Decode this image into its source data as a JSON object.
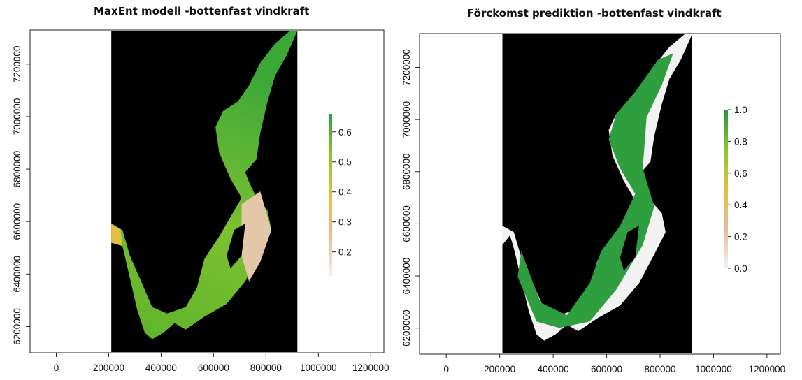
{
  "chart_data": [
    {
      "type": "heatmap",
      "title": "MaxEnt modell -bottenfast vindkraft",
      "xlabel": "",
      "ylabel": "",
      "xlim": [
        -100000,
        1250000
      ],
      "ylim": [
        6100000,
        7330000
      ],
      "x_ticks": [
        0,
        200000,
        400000,
        600000,
        800000,
        1000000,
        1200000
      ],
      "y_ticks": [
        6200000,
        6400000,
        6600000,
        6800000,
        7000000,
        7200000
      ],
      "raster_extent_x": [
        210000,
        920000
      ],
      "legend": {
        "range": [
          0.12,
          0.66
        ],
        "ticks": [
          0.2,
          0.3,
          0.4,
          0.5,
          0.6
        ],
        "tick_labels": [
          "0.2",
          "0.3",
          "0.4",
          "0.5",
          "0.6"
        ],
        "colors": [
          "#f2f2f2",
          "#e8b89e",
          "#e0c040",
          "#8ac630",
          "#2e9e3e"
        ]
      },
      "background_color": "#000000"
    },
    {
      "type": "heatmap",
      "title": "Förckomst prediktion -bottenfast vindkraft",
      "xlabel": "",
      "ylabel": "",
      "xlim": [
        -100000,
        1250000
      ],
      "ylim": [
        6100000,
        7330000
      ],
      "x_ticks": [
        0,
        200000,
        400000,
        600000,
        800000,
        1000000,
        1200000
      ],
      "y_ticks": [
        6200000,
        6400000,
        6600000,
        6800000,
        7000000,
        7200000
      ],
      "raster_extent_x": [
        210000,
        920000
      ],
      "legend": {
        "range": [
          0.0,
          1.0
        ],
        "ticks": [
          0.0,
          0.2,
          0.4,
          0.6,
          0.8,
          1.0
        ],
        "tick_labels": [
          "0.0",
          "0.2",
          "0.4",
          "0.6",
          "0.8",
          "1.0"
        ],
        "colors": [
          "#f2f2f2",
          "#e8b89e",
          "#e0c040",
          "#8ac630",
          "#1f9a3a"
        ]
      },
      "background_color": "#000000"
    }
  ]
}
